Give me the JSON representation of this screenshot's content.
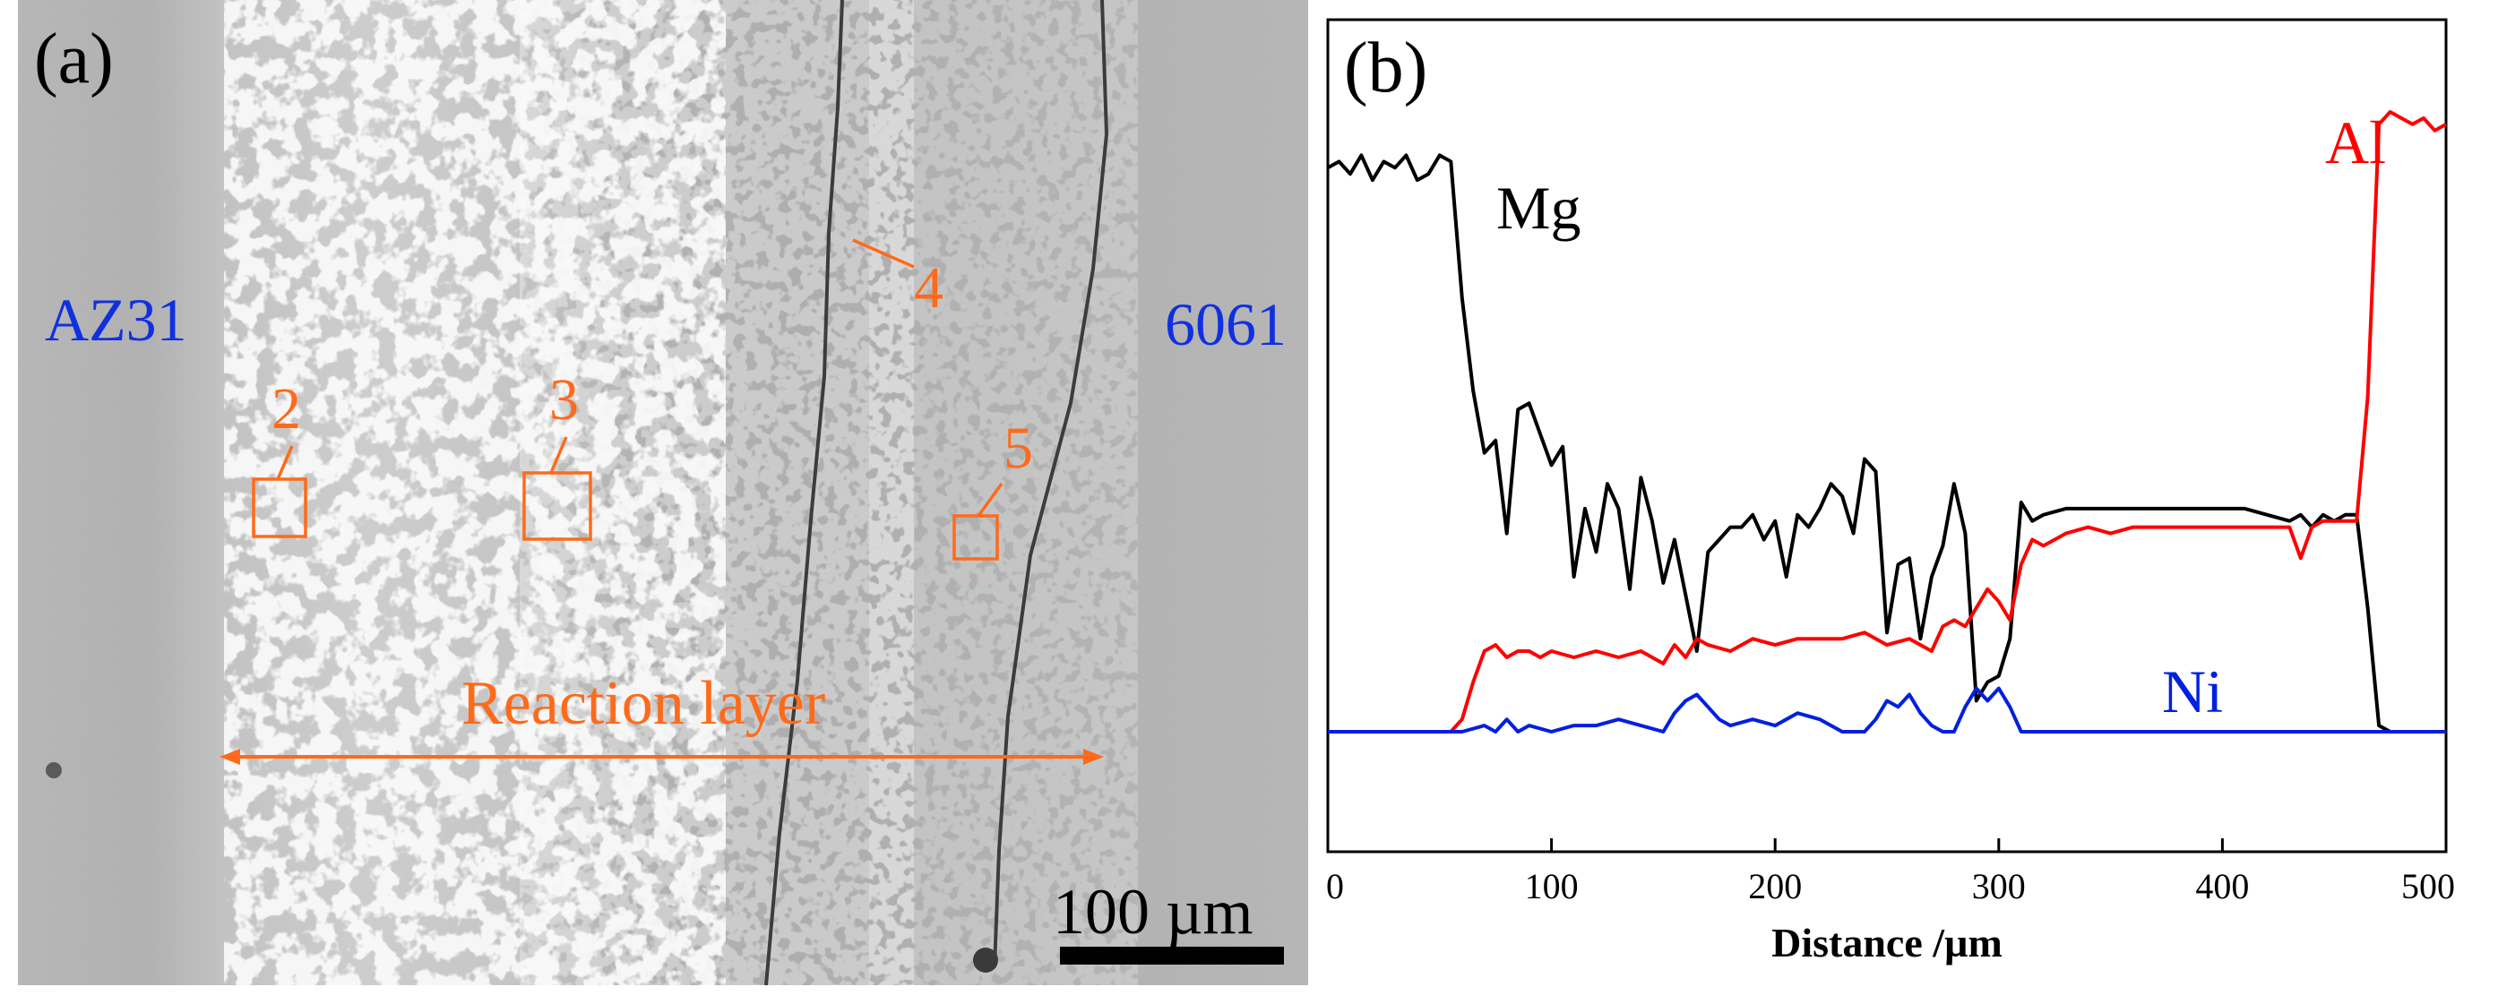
{
  "panel_a": {
    "label": "(a)",
    "material_left": "AZ31",
    "material_right": "6061",
    "points": [
      "2",
      "3",
      "4",
      "5"
    ],
    "reaction_label": "Reaction layer",
    "scale_label": "100 µm",
    "colors": {
      "accent": "#ff6a1a",
      "material": "#1030e0",
      "text": "#000000"
    }
  },
  "panel_b": {
    "label": "(b)"
  },
  "chart_data": {
    "type": "line",
    "title": "",
    "xlabel": "Distance /µm",
    "ylabel": "",
    "xlim": [
      0,
      500
    ],
    "ylim": [
      0,
      100
    ],
    "xticks": [
      "0",
      "100",
      "200",
      "300",
      "400",
      "500"
    ],
    "grid": false,
    "series": [
      {
        "name": "Mg",
        "color": "#000000",
        "x": [
          0,
          5,
          10,
          15,
          20,
          25,
          30,
          35,
          40,
          45,
          50,
          55,
          60,
          65,
          70,
          75,
          80,
          85,
          90,
          95,
          100,
          105,
          110,
          115,
          120,
          125,
          130,
          135,
          140,
          145,
          150,
          155,
          160,
          165,
          170,
          175,
          180,
          185,
          190,
          195,
          200,
          205,
          210,
          215,
          220,
          225,
          230,
          235,
          240,
          245,
          250,
          255,
          260,
          265,
          270,
          275,
          280,
          285,
          290,
          295,
          300,
          305,
          310,
          315,
          320,
          330,
          340,
          350,
          360,
          370,
          380,
          390,
          400,
          410,
          420,
          430,
          435,
          440,
          445,
          450,
          455,
          460,
          465,
          470,
          475,
          480,
          490,
          500
        ],
        "values": [
          91,
          92,
          90,
          93,
          89,
          92,
          91,
          93,
          89,
          90,
          93,
          92,
          70,
          55,
          45,
          47,
          32,
          52,
          53,
          48,
          43,
          46,
          25,
          36,
          29,
          40,
          36,
          23,
          41,
          34,
          24,
          31,
          22,
          13,
          29,
          31,
          33,
          33,
          35,
          31,
          34,
          25,
          35,
          33,
          36,
          40,
          38,
          32,
          44,
          42,
          16,
          27,
          28,
          15,
          25,
          30,
          40,
          32,
          5,
          8,
          9,
          15,
          37,
          34,
          35,
          36,
          36,
          36,
          36,
          36,
          36,
          36,
          36,
          36,
          35,
          34,
          35,
          33,
          35,
          34,
          35,
          35,
          20,
          1,
          0,
          0,
          0,
          0
        ]
      },
      {
        "name": "Al",
        "color": "#ff0000",
        "x": [
          0,
          10,
          20,
          30,
          40,
          50,
          55,
          60,
          65,
          70,
          75,
          80,
          85,
          90,
          95,
          100,
          110,
          120,
          130,
          140,
          150,
          155,
          160,
          165,
          170,
          180,
          190,
          200,
          210,
          220,
          230,
          240,
          250,
          260,
          270,
          275,
          280,
          285,
          290,
          295,
          300,
          305,
          310,
          315,
          320,
          330,
          340,
          350,
          360,
          370,
          380,
          390,
          400,
          410,
          420,
          430,
          435,
          440,
          445,
          450,
          455,
          460,
          465,
          470,
          475,
          480,
          485,
          490,
          495,
          500
        ],
        "values": [
          0,
          0,
          0,
          0,
          0,
          0,
          0,
          2,
          8,
          13,
          14,
          12,
          13,
          13,
          12,
          13,
          12,
          13,
          12,
          13,
          11,
          14,
          12,
          15,
          14,
          13,
          15,
          14,
          15,
          15,
          15,
          16,
          14,
          15,
          13,
          17,
          18,
          17,
          20,
          23,
          21,
          18,
          27,
          31,
          30,
          32,
          33,
          32,
          33,
          33,
          33,
          33,
          33,
          33,
          33,
          33,
          28,
          33,
          34,
          34,
          34,
          34,
          54,
          98,
          100,
          99,
          98,
          99,
          97,
          98
        ]
      },
      {
        "name": "Ni",
        "color": "#0020e0",
        "x": [
          0,
          20,
          40,
          60,
          70,
          75,
          80,
          85,
          90,
          100,
          110,
          120,
          130,
          140,
          150,
          155,
          160,
          165,
          170,
          175,
          180,
          190,
          200,
          210,
          220,
          230,
          240,
          245,
          250,
          255,
          260,
          265,
          270,
          275,
          280,
          285,
          290,
          295,
          300,
          305,
          310,
          320,
          340,
          360,
          380,
          400,
          420,
          440,
          460,
          480,
          500
        ],
        "values": [
          0,
          0,
          0,
          0,
          1,
          0,
          2,
          0,
          1,
          0,
          1,
          1,
          2,
          1,
          0,
          3,
          5,
          6,
          4,
          2,
          1,
          2,
          1,
          3,
          2,
          0,
          0,
          2,
          5,
          4,
          6,
          3,
          1,
          0,
          0,
          4,
          7,
          5,
          7,
          4,
          0,
          0,
          0,
          0,
          0,
          0,
          0,
          0,
          0,
          0,
          0
        ]
      }
    ],
    "annotations": [
      "Mg",
      "Al",
      "Ni"
    ]
  }
}
